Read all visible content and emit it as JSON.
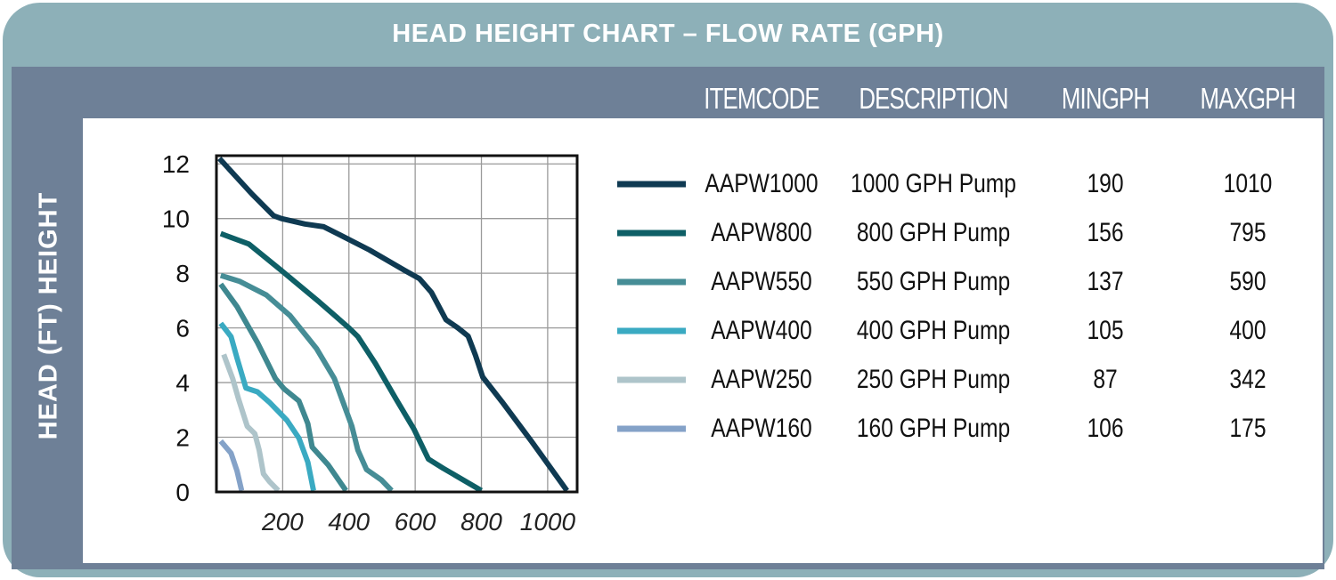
{
  "title": "HEAD HEIGHT CHART – FLOW RATE (GPH)",
  "table": {
    "headers": [
      "ITEMCODE",
      "DESCRIPTION",
      "MINGPH",
      "MAXGPH"
    ],
    "rows": [
      {
        "code": "AAPW1000",
        "description": "1000 GPH Pump",
        "min": "190",
        "max": "1010",
        "color": "#0f3a52"
      },
      {
        "code": "AAPW800",
        "description": "800 GPH Pump",
        "min": "156",
        "max": "795",
        "color": "#0e5f66"
      },
      {
        "code": "AAPW550",
        "description": "550 GPH Pump",
        "min": "137",
        "max": "590",
        "color": "#468d96"
      },
      {
        "code": "AAPW400",
        "description": "400 GPH Pump",
        "min": "105",
        "max": "400",
        "color": "#3aaac2"
      },
      {
        "code": "AAPW250",
        "description": "250 GPH Pump",
        "min": "87",
        "max": "342",
        "color": "#aec4ca"
      },
      {
        "code": "AAPW160",
        "description": "160 GPH Pump",
        "min": "106",
        "max": "175",
        "color": "#84a2c8"
      }
    ]
  },
  "colors": {
    "card": "#8db0b8",
    "band": "#6e8097"
  },
  "chart_data": {
    "type": "line",
    "ylabel": "HEAD (FT) HEIGHT",
    "xlabel": "",
    "xlim": [
      0,
      1089
    ],
    "ylim": [
      0,
      12.3
    ],
    "xticks": [
      "200",
      "400",
      "600",
      "800",
      "1000"
    ],
    "xtick_values": [
      200,
      400,
      600,
      800,
      1000
    ],
    "yticks": [
      "0",
      "2",
      "4",
      "6",
      "8",
      "10",
      "12"
    ],
    "ytick_values": [
      0,
      2,
      4,
      6,
      8,
      10,
      12
    ],
    "grid": true,
    "series": [
      {
        "name": "AAPW1000",
        "color": "#0f3a52",
        "points": [
          [
            9,
            12.2
          ],
          [
            107,
            10.9
          ],
          [
            173,
            10.1
          ],
          [
            196,
            10.0
          ],
          [
            267,
            9.8
          ],
          [
            324,
            9.7
          ],
          [
            373,
            9.4
          ],
          [
            462,
            8.85
          ],
          [
            569,
            8.1
          ],
          [
            613,
            7.8
          ],
          [
            649,
            7.3
          ],
          [
            693,
            6.3
          ],
          [
            729,
            6.0
          ],
          [
            760,
            5.7
          ],
          [
            782,
            5.0
          ],
          [
            804,
            4.2
          ],
          [
            862,
            3.3
          ],
          [
            951,
            1.85
          ],
          [
            996,
            1.1
          ],
          [
            1058,
            0.05
          ]
        ]
      },
      {
        "name": "AAPW800",
        "color": "#0e5f66",
        "points": [
          [
            13,
            9.45
          ],
          [
            98,
            9.07
          ],
          [
            196,
            8.1
          ],
          [
            311,
            6.94
          ],
          [
            400,
            6.0
          ],
          [
            427,
            5.68
          ],
          [
            480,
            4.7
          ],
          [
            542,
            3.4
          ],
          [
            596,
            2.3
          ],
          [
            640,
            1.2
          ],
          [
            684,
            0.87
          ],
          [
            800,
            0.05
          ]
        ]
      },
      {
        "name": "AAPW550",
        "color": "#468d96",
        "points": [
          [
            13,
            7.92
          ],
          [
            71,
            7.7
          ],
          [
            151,
            7.2
          ],
          [
            222,
            6.45
          ],
          [
            302,
            5.25
          ],
          [
            356,
            4.15
          ],
          [
            409,
            2.4
          ],
          [
            427,
            1.53
          ],
          [
            453,
            0.82
          ],
          [
            498,
            0.44
          ],
          [
            529,
            0.05
          ]
        ]
      },
      {
        "color": "#3f8890",
        "points": [
          [
            13,
            7.6
          ],
          [
            62,
            6.78
          ],
          [
            124,
            5.46
          ],
          [
            178,
            4.15
          ],
          [
            204,
            3.77
          ],
          [
            249,
            3.33
          ],
          [
            276,
            2.5
          ],
          [
            289,
            1.64
          ],
          [
            338,
            0.98
          ],
          [
            391,
            0.05
          ]
        ]
      },
      {
        "name": "AAPW400",
        "color": "#3aaac2",
        "points": [
          [
            13,
            6.17
          ],
          [
            44,
            5.68
          ],
          [
            62,
            4.9
          ],
          [
            89,
            3.8
          ],
          [
            124,
            3.66
          ],
          [
            160,
            3.28
          ],
          [
            213,
            2.62
          ],
          [
            249,
            1.97
          ],
          [
            276,
            1.09
          ],
          [
            293,
            0.05
          ]
        ]
      },
      {
        "name": "AAPW250",
        "color": "#aec4ca",
        "points": [
          [
            22,
            5.03
          ],
          [
            49,
            4.15
          ],
          [
            67,
            3.39
          ],
          [
            93,
            2.4
          ],
          [
            116,
            2.13
          ],
          [
            129,
            1.53
          ],
          [
            142,
            0.66
          ],
          [
            160,
            0.38
          ],
          [
            187,
            0.05
          ]
        ]
      },
      {
        "name": "AAPW160",
        "color": "#84a2c8",
        "points": [
          [
            13,
            1.86
          ],
          [
            44,
            1.42
          ],
          [
            62,
            0.77
          ],
          [
            76,
            0.05
          ]
        ]
      }
    ]
  }
}
